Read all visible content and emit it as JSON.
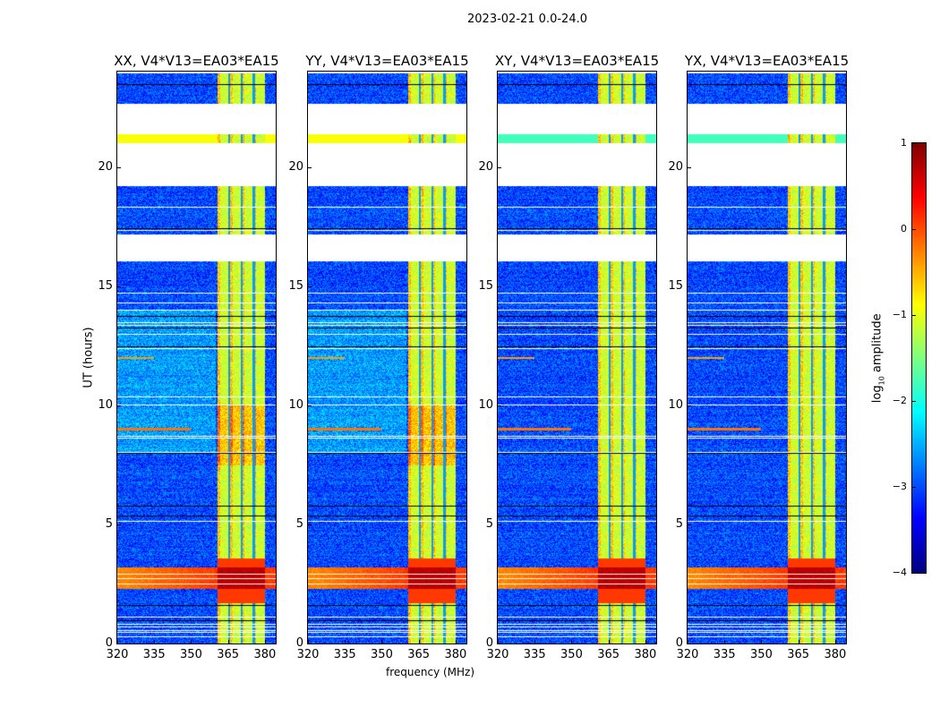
{
  "title": "2023-02-21 0.0-24.0",
  "chart_data": {
    "type": "heatmap",
    "xlabel": "frequency (MHz)",
    "ylabel": "UT (hours)",
    "xlim": [
      320,
      384.4
    ],
    "ylim": [
      0,
      24
    ],
    "xticks": [
      320,
      335,
      350,
      365,
      380
    ],
    "yticks": [
      0,
      5,
      10,
      15,
      20
    ],
    "panels": [
      {
        "title": "XX, V4*V13=EA03*EA15",
        "pol": "XX"
      },
      {
        "title": "YY, V4*V13=EA03*EA15",
        "pol": "YY"
      },
      {
        "title": "XY, V4*V13=EA03*EA15",
        "pol": "XY"
      },
      {
        "title": "YX, V4*V13=EA03*EA15",
        "pol": "YX"
      }
    ],
    "colorbar": {
      "label": "log10 amplitude",
      "label_main": "log",
      "label_sub": "10",
      "label_rest": " amplitude",
      "range": [
        -4,
        1
      ],
      "ticks": [
        "1",
        "0",
        "−1",
        "−2",
        "−3",
        "−4"
      ],
      "tick_values": [
        1,
        0,
        -1,
        -2,
        -3,
        -4
      ],
      "colormap": "jet"
    },
    "features": {
      "background_level": -3.0,
      "band_MHz": [
        360.7,
        380
      ],
      "band_level": -1.0,
      "subband_edges_MHz": [
        365.5,
        370.5,
        375.5
      ],
      "flagged_gaps_hours": [
        [
          22.65,
          21.4
        ],
        [
          21.0,
          19.2
        ],
        [
          17.2,
          16.05
        ]
      ],
      "rfi_event_hours": [
        2.3,
        3.2
      ],
      "rfi_event_level": 0.3
    }
  }
}
